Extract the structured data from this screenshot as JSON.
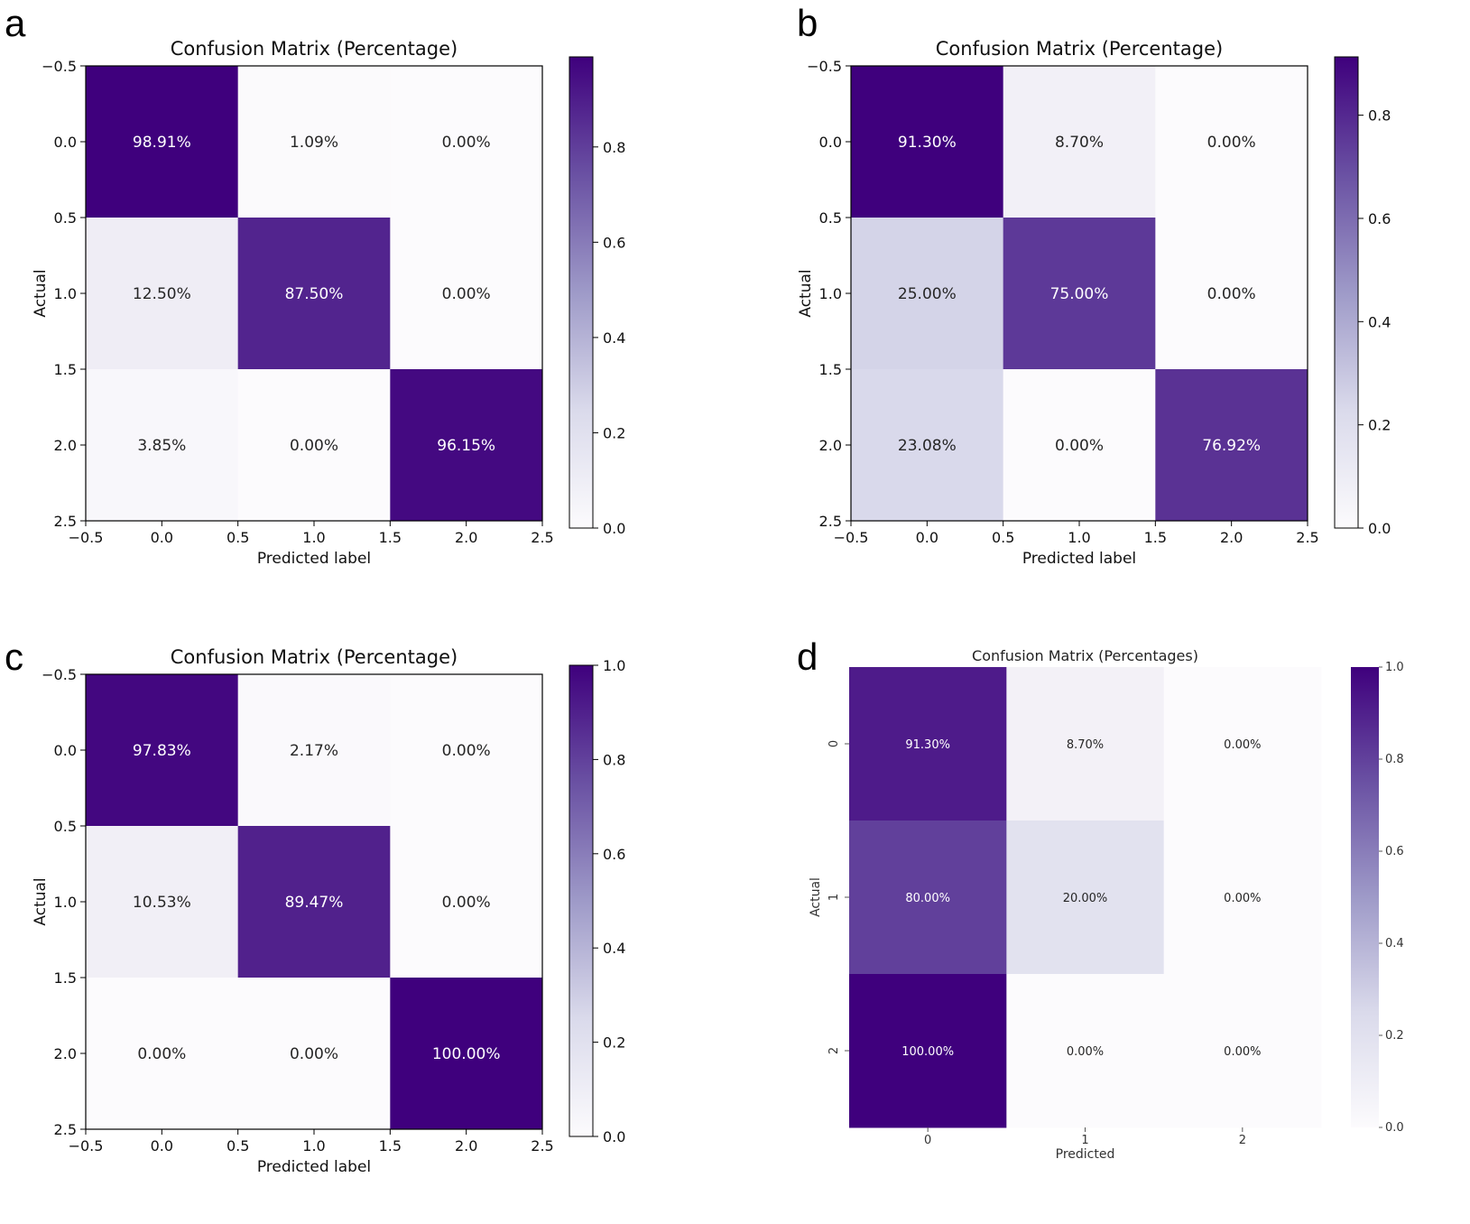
{
  "figure": {
    "panel_letters": [
      "a",
      "b",
      "c",
      "d"
    ]
  },
  "colors": {
    "cmap_low": "#fcfbfd",
    "cmap_high": "#3f007d",
    "axis": "#000000"
  },
  "chart_data": [
    {
      "panel": "a",
      "type": "heatmap",
      "style": "matplotlib",
      "title": "Confusion Matrix (Percentage)",
      "xlabel": "Predicted label",
      "ylabel": "Actual",
      "xticks": [
        "−0.5",
        "0.0",
        "0.5",
        "1.0",
        "1.5",
        "2.0",
        "2.5"
      ],
      "yticks": [
        "−0.5",
        "0.0",
        "0.5",
        "1.0",
        "1.5",
        "2.0",
        "2.5"
      ],
      "colorbar_ticks": [
        "0.0",
        "0.2",
        "0.4",
        "0.6",
        "0.8"
      ],
      "colorbar_range": [
        0,
        0.9891
      ],
      "values": [
        [
          0.9891,
          0.0109,
          0.0
        ],
        [
          0.125,
          0.875,
          0.0
        ],
        [
          0.0385,
          0.0,
          0.9615
        ]
      ],
      "labels": [
        [
          "98.91%",
          "1.09%",
          "0.00%"
        ],
        [
          "12.50%",
          "87.50%",
          "0.00%"
        ],
        [
          "3.85%",
          "0.00%",
          "96.15%"
        ]
      ]
    },
    {
      "panel": "b",
      "type": "heatmap",
      "style": "matplotlib",
      "title": "Confusion Matrix (Percentage)",
      "xlabel": "Predicted label",
      "ylabel": "Actual",
      "xticks": [
        "−0.5",
        "0.0",
        "0.5",
        "1.0",
        "1.5",
        "2.0",
        "2.5"
      ],
      "yticks": [
        "−0.5",
        "0.0",
        "0.5",
        "1.0",
        "1.5",
        "2.0",
        "2.5"
      ],
      "colorbar_ticks": [
        "0.0",
        "0.2",
        "0.4",
        "0.6",
        "0.8"
      ],
      "colorbar_range": [
        0,
        0.913
      ],
      "values": [
        [
          0.913,
          0.087,
          0.0
        ],
        [
          0.25,
          0.75,
          0.0
        ],
        [
          0.2308,
          0.0,
          0.7692
        ]
      ],
      "labels": [
        [
          "91.30%",
          "8.70%",
          "0.00%"
        ],
        [
          "25.00%",
          "75.00%",
          "0.00%"
        ],
        [
          "23.08%",
          "0.00%",
          "76.92%"
        ]
      ]
    },
    {
      "panel": "c",
      "type": "heatmap",
      "style": "matplotlib",
      "title": "Confusion Matrix (Percentage)",
      "xlabel": "Predicted label",
      "ylabel": "Actual",
      "xticks": [
        "−0.5",
        "0.0",
        "0.5",
        "1.0",
        "1.5",
        "2.0",
        "2.5"
      ],
      "yticks": [
        "−0.5",
        "0.0",
        "0.5",
        "1.0",
        "1.5",
        "2.0",
        "2.5"
      ],
      "colorbar_ticks": [
        "0.0",
        "0.2",
        "0.4",
        "0.6",
        "0.8",
        "1.0"
      ],
      "colorbar_range": [
        0,
        1.0
      ],
      "values": [
        [
          0.9783,
          0.0217,
          0.0
        ],
        [
          0.1053,
          0.8947,
          0.0
        ],
        [
          0.0,
          0.0,
          1.0
        ]
      ],
      "labels": [
        [
          "97.83%",
          "2.17%",
          "0.00%"
        ],
        [
          "10.53%",
          "89.47%",
          "0.00%"
        ],
        [
          "0.00%",
          "0.00%",
          "100.00%"
        ]
      ]
    },
    {
      "panel": "d",
      "type": "heatmap",
      "style": "seaborn",
      "title": "Confusion Matrix (Percentages)",
      "xlabel": "Predicted",
      "ylabel": "Actual",
      "xticks": [
        "0",
        "1",
        "2"
      ],
      "yticks": [
        "0",
        "1",
        "2"
      ],
      "colorbar_ticks": [
        "0.0",
        "0.2",
        "0.4",
        "0.6",
        "0.8",
        "1.0"
      ],
      "colorbar_range": [
        0,
        1.0
      ],
      "values": [
        [
          0.913,
          0.087,
          0.0
        ],
        [
          0.8,
          0.2,
          0.0
        ],
        [
          1.0,
          0.0,
          0.0
        ]
      ],
      "labels": [
        [
          "91.30%",
          "8.70%",
          "0.00%"
        ],
        [
          "80.00%",
          "20.00%",
          "0.00%"
        ],
        [
          "100.00%",
          "0.00%",
          "0.00%"
        ]
      ]
    }
  ]
}
